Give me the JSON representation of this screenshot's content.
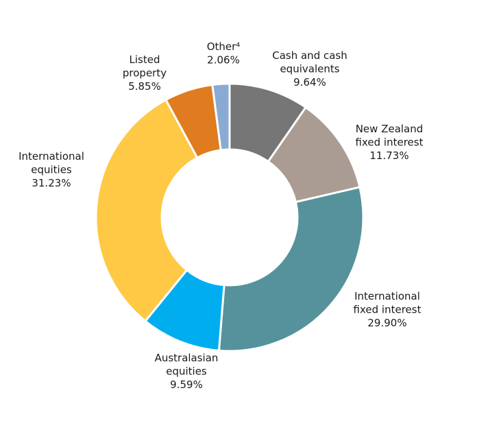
{
  "chart_data": {
    "type": "pie",
    "donut": true,
    "legend": "none",
    "title": "",
    "unit": "%",
    "slices": [
      {
        "label": [
          "Cash and cash",
          "equivalents"
        ],
        "value": 9.64,
        "value_label": "9.64%",
        "color": "#767676"
      },
      {
        "label": [
          "New Zealand",
          "fixed interest"
        ],
        "value": 11.73,
        "value_label": "11.73%",
        "color": "#ab9c93"
      },
      {
        "label": [
          "International",
          "fixed interest"
        ],
        "value": 29.9,
        "value_label": "29.90%",
        "color": "#56929b"
      },
      {
        "label": [
          "Australasian",
          "equities"
        ],
        "value": 9.59,
        "value_label": "9.59%",
        "color": "#00aeef"
      },
      {
        "label": [
          "International",
          "equities"
        ],
        "value": 31.23,
        "value_label": "31.23%",
        "color": "#ffc845"
      },
      {
        "label": [
          "Listed",
          "property"
        ],
        "value": 5.85,
        "value_label": "5.85%",
        "color": "#e07b1f"
      },
      {
        "label": [
          "Other⁴"
        ],
        "value": 2.06,
        "value_label": "2.06%",
        "color": "#89abd3"
      }
    ]
  }
}
